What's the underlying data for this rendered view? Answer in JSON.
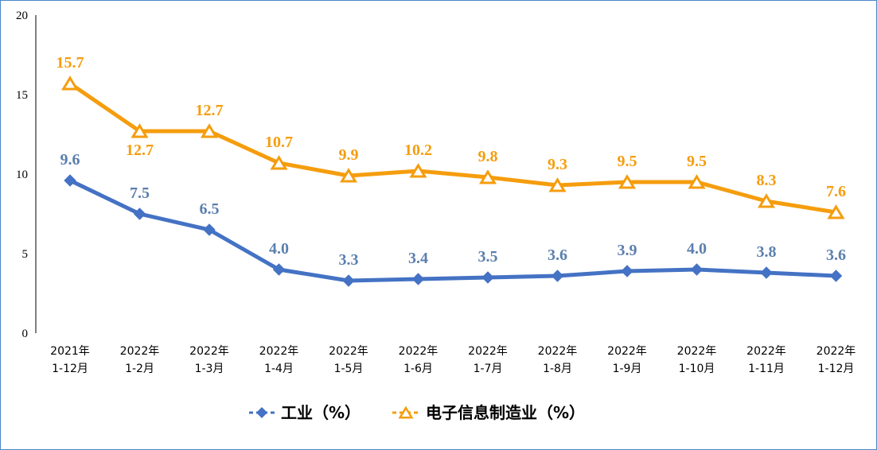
{
  "chart_data": {
    "type": "line",
    "categories": [
      [
        "2021年",
        "1-12月"
      ],
      [
        "2022年",
        "1-2月"
      ],
      [
        "2022年",
        "1-3月"
      ],
      [
        "2022年",
        "1-4月"
      ],
      [
        "2022年",
        "1-5月"
      ],
      [
        "2022年",
        "1-6月"
      ],
      [
        "2022年",
        "1-7月"
      ],
      [
        "2022年",
        "1-8月"
      ],
      [
        "2022年",
        "1-9月"
      ],
      [
        "2022年",
        "1-10月"
      ],
      [
        "2022年",
        "1-11月"
      ],
      [
        "2022年",
        "1-12月"
      ]
    ],
    "ylim": [
      0,
      20
    ],
    "yticks": [
      0,
      5,
      10,
      15,
      20
    ],
    "grid": false,
    "legend_position": "bottom",
    "series": [
      {
        "name": "工业（%）",
        "color": "#4472c4",
        "marker": "diamond",
        "values": [
          9.6,
          7.5,
          6.5,
          4.0,
          3.3,
          3.4,
          3.5,
          3.6,
          3.9,
          4.0,
          3.8,
          3.6
        ],
        "labels": [
          "9.6",
          "7.5",
          "6.5",
          "4.0",
          "3.3",
          "3.4",
          "3.5",
          "3.6",
          "3.9",
          "4.0",
          "3.8",
          "3.6"
        ]
      },
      {
        "name": "电子信息制造业（%）",
        "color": "#f59d0e",
        "marker": "triangle",
        "values": [
          15.7,
          12.7,
          12.7,
          10.7,
          9.9,
          10.2,
          9.8,
          9.3,
          9.5,
          9.5,
          8.3,
          7.6
        ],
        "labels": [
          "15.7",
          "12.7",
          "12.7",
          "10.7",
          "9.9",
          "10.2",
          "9.8",
          "9.3",
          "9.5",
          "9.5",
          "8.3",
          "7.6"
        ]
      }
    ],
    "label_colors": {
      "industry": "#5b7fae",
      "electronics": "#f59d0e"
    }
  }
}
